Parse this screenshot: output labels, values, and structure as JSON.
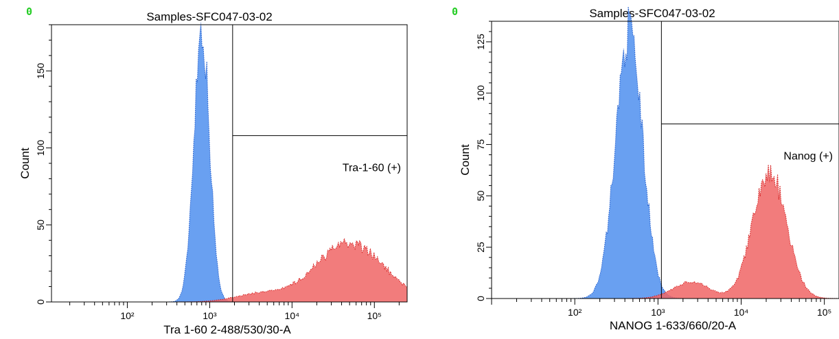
{
  "chart_data": [
    {
      "type": "area",
      "title": "Samples-SFC047-03-02",
      "corner_marker": "0",
      "corner_marker_color": "#22cc22",
      "xlabel": "Tra 1-60 2-488/530/30-A",
      "ylabel": "Count",
      "x_scale": "log",
      "xlim": [
        12,
        250000
      ],
      "ylim": [
        0,
        180
      ],
      "yticks": [
        0,
        50,
        100,
        150
      ],
      "ytick_labels": [
        "0",
        "50",
        "100",
        "150"
      ],
      "xticks": [
        100,
        1000,
        10000,
        100000
      ],
      "xtick_labels": [
        "10²",
        "10³",
        "10⁴",
        "10⁵"
      ],
      "gate_label": "Tra-1-60 (+)",
      "gate": {
        "x_start": 1900,
        "y_level": 108
      },
      "series": [
        {
          "color": "#4f8fef",
          "line_color": "#1a56c9",
          "peaks": [
            {
              "center": 800,
              "height": 178,
              "width_log": 0.095
            }
          ]
        },
        {
          "color": "#f06565",
          "line_color": "#d21818",
          "peaks": [
            {
              "center": 50000,
              "height": 38,
              "width_log": 0.42
            },
            {
              "center": 4000,
              "height": 5,
              "width_log": 0.3
            }
          ]
        }
      ]
    },
    {
      "type": "area",
      "title": "Samples-SFC047-03-02",
      "corner_marker": "0",
      "corner_marker_color": "#22cc22",
      "xlabel": "NANOG 1-633/660/20-A",
      "ylabel": "Count",
      "x_scale": "log",
      "xlim": [
        10,
        150000
      ],
      "ylim": [
        0,
        135
      ],
      "yticks": [
        0,
        25,
        50,
        75,
        100,
        125
      ],
      "ytick_labels": [
        "0",
        "25",
        "50",
        "75",
        "100",
        "125"
      ],
      "xticks": [
        100,
        1000,
        10000,
        100000
      ],
      "xtick_labels": [
        "10²",
        "10³",
        "10⁴",
        "10⁵"
      ],
      "gate_label": "Nanog (+)",
      "gate": {
        "x_start": 1100,
        "y_level": 85
      },
      "series": [
        {
          "color": "#4f8fef",
          "line_color": "#1a56c9",
          "peaks": [
            {
              "center": 450,
              "height": 130,
              "width_log": 0.16
            }
          ]
        },
        {
          "color": "#f06565",
          "line_color": "#d21818",
          "peaks": [
            {
              "center": 22000,
              "height": 62,
              "width_log": 0.2
            },
            {
              "center": 2500,
              "height": 8,
              "width_log": 0.22
            }
          ]
        }
      ]
    }
  ]
}
